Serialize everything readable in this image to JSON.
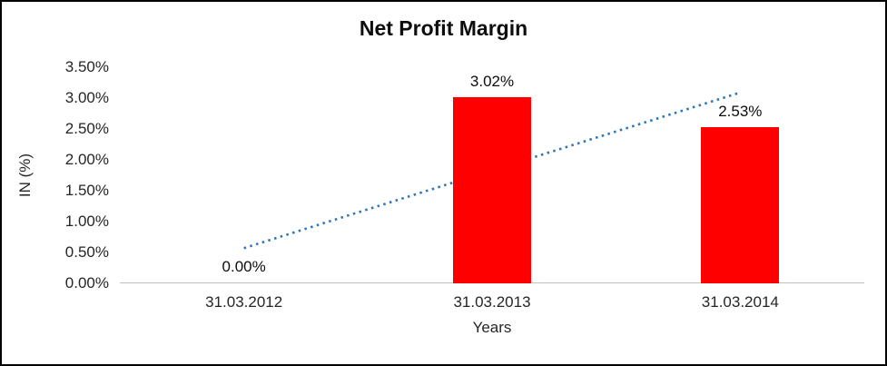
{
  "chart_data": {
    "type": "bar",
    "title": "Net Profit Margin",
    "xlabel": "Years",
    "ylabel": "IN (%)",
    "categories": [
      "31.03.2012",
      "31.03.2013",
      "31.03.2014"
    ],
    "values": [
      0.0,
      3.02,
      2.53
    ],
    "value_labels": [
      "0.00%",
      "3.02%",
      "2.53%"
    ],
    "ylim": [
      0,
      3.5
    ],
    "ytick_step": 0.5,
    "ytick_labels": [
      "0.00%",
      "0.50%",
      "1.00%",
      "1.50%",
      "2.00%",
      "2.50%",
      "3.00%",
      "3.50%"
    ],
    "bar_color": "#FF0000",
    "axis_color": "#BFBFBF",
    "grid": false,
    "legend": "none",
    "trendline": {
      "style": "dotted",
      "color": "#2E75B6",
      "start_value": 0.57,
      "end_value": 3.09
    }
  }
}
